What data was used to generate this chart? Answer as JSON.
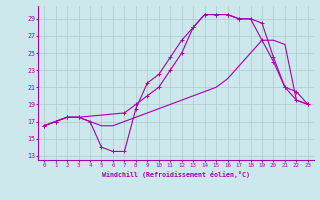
{
  "bg_color": "#cce8ed",
  "grid_color": "#aacccc",
  "line_color": "#aa00aa",
  "xlabel": "Windchill (Refroidissement éolien,°C)",
  "xlim": [
    -0.5,
    23.5
  ],
  "ylim": [
    12.5,
    30.5
  ],
  "yticks": [
    13,
    15,
    17,
    19,
    21,
    23,
    25,
    27,
    29
  ],
  "xticks": [
    0,
    1,
    2,
    3,
    4,
    5,
    6,
    7,
    8,
    9,
    10,
    11,
    12,
    13,
    14,
    15,
    16,
    17,
    18,
    19,
    20,
    21,
    22,
    23
  ],
  "line1_x": [
    0,
    1,
    2,
    3,
    4,
    5,
    6,
    7,
    8,
    9,
    10,
    11,
    12,
    13,
    14,
    15,
    16,
    17,
    18,
    19,
    20,
    21,
    22,
    23
  ],
  "line1_y": [
    16.5,
    17.0,
    17.5,
    17.5,
    17.0,
    14.0,
    13.5,
    13.5,
    18.5,
    21.5,
    22.5,
    24.5,
    26.5,
    28.0,
    29.5,
    29.5,
    29.5,
    29.0,
    29.0,
    26.5,
    24.0,
    21.0,
    19.5,
    19.0
  ],
  "line2_x": [
    0,
    1,
    2,
    3,
    4,
    5,
    6,
    7,
    8,
    9,
    10,
    11,
    12,
    13,
    14,
    15,
    16,
    17,
    18,
    19,
    20,
    21,
    22,
    23
  ],
  "line2_y": [
    16.5,
    17.0,
    17.5,
    17.5,
    17.0,
    16.5,
    16.5,
    17.0,
    17.5,
    18.0,
    18.5,
    19.0,
    19.5,
    20.0,
    20.5,
    21.0,
    22.0,
    23.5,
    25.0,
    26.5,
    26.5,
    26.0,
    19.5,
    19.0
  ],
  "line3_x": [
    0,
    1,
    2,
    3,
    7,
    8,
    9,
    10,
    11,
    12,
    13,
    14,
    15,
    16,
    17,
    18,
    19,
    20,
    21,
    22,
    23
  ],
  "line3_y": [
    16.5,
    17.0,
    17.5,
    17.5,
    18.0,
    19.0,
    20.0,
    21.0,
    23.0,
    25.0,
    28.0,
    29.5,
    29.5,
    29.5,
    29.0,
    29.0,
    28.5,
    24.5,
    21.0,
    20.5,
    19.0
  ]
}
